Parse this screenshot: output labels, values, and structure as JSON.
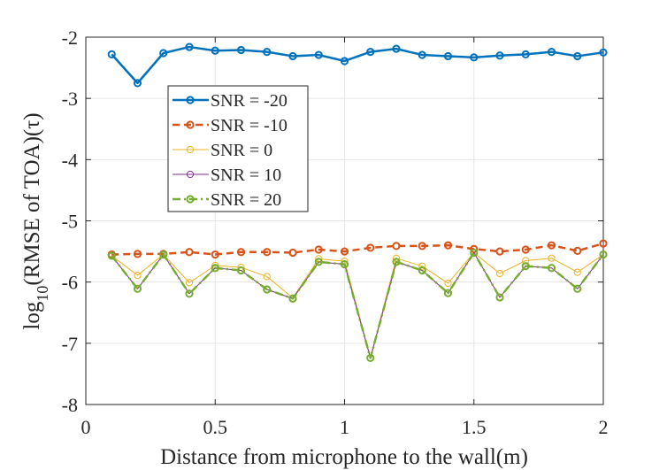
{
  "chart_data": {
    "type": "line",
    "xlabel": "Distance from microphone to the wall(m)",
    "ylabel_main": "log",
    "ylabel_sub": "10",
    "ylabel_rest": "(RMSE of TOA)(τ)",
    "xlim": [
      0,
      2
    ],
    "ylim": [
      -8,
      -2
    ],
    "xticks": [
      0,
      0.5,
      1,
      1.5,
      2
    ],
    "xtick_labels": [
      "0",
      "0.5",
      "1",
      "1.5",
      "2"
    ],
    "yticks": [
      -2,
      -3,
      -4,
      -5,
      -6,
      -7,
      -8
    ],
    "ytick_labels": [
      "-2",
      "-3",
      "-4",
      "-5",
      "-6",
      "-7",
      "-8"
    ],
    "grid": true,
    "legend_position": "upper-left",
    "x": [
      0.1,
      0.2,
      0.3,
      0.4,
      0.5,
      0.6,
      0.7,
      0.8,
      0.9,
      1.0,
      1.1,
      1.2,
      1.3,
      1.4,
      1.5,
      1.6,
      1.7,
      1.8,
      1.9,
      2.0
    ],
    "series": [
      {
        "name": "SNR = -20",
        "color": "#0072bd",
        "style": "solid",
        "width": 2.5,
        "values": [
          -2.28,
          -2.75,
          -2.26,
          -2.16,
          -2.22,
          -2.21,
          -2.24,
          -2.31,
          -2.29,
          -2.39,
          -2.24,
          -2.19,
          -2.29,
          -2.31,
          -2.33,
          -2.3,
          -2.28,
          -2.24,
          -2.31,
          -2.25
        ]
      },
      {
        "name": "SNR = -10",
        "color": "#d95319",
        "style": "dashed",
        "width": 2.5,
        "values": [
          -5.55,
          -5.54,
          -5.54,
          -5.51,
          -5.55,
          -5.51,
          -5.51,
          -5.52,
          -5.47,
          -5.5,
          -5.44,
          -5.41,
          -5.41,
          -5.4,
          -5.46,
          -5.5,
          -5.47,
          -5.4,
          -5.49,
          -5.37
        ]
      },
      {
        "name": "SNR = 0",
        "color": "#edb120",
        "style": "solid",
        "width": 1,
        "values": [
          -5.57,
          -5.89,
          -5.55,
          -6.01,
          -5.73,
          -5.76,
          -5.91,
          -6.26,
          -5.62,
          -5.66,
          -7.24,
          -5.61,
          -5.74,
          -6.02,
          -5.52,
          -5.86,
          -5.65,
          -5.61,
          -5.84,
          -5.55
        ]
      },
      {
        "name": "SNR = 10",
        "color": "#7e2f8e",
        "style": "solid",
        "width": 1,
        "values": [
          -5.57,
          -6.11,
          -5.55,
          -6.19,
          -5.77,
          -5.81,
          -6.12,
          -6.27,
          -5.67,
          -5.71,
          -7.24,
          -5.67,
          -5.81,
          -6.18,
          -5.52,
          -6.25,
          -5.74,
          -5.77,
          -6.11,
          -5.55
        ]
      },
      {
        "name": "SNR = 20",
        "color": "#77ac30",
        "style": "dashdot",
        "width": 2.5,
        "values": [
          -5.57,
          -6.11,
          -5.55,
          -6.19,
          -5.77,
          -5.81,
          -6.12,
          -6.27,
          -5.67,
          -5.71,
          -7.24,
          -5.67,
          -5.81,
          -6.18,
          -5.52,
          -6.25,
          -5.74,
          -5.77,
          -6.11,
          -5.55
        ]
      }
    ]
  }
}
